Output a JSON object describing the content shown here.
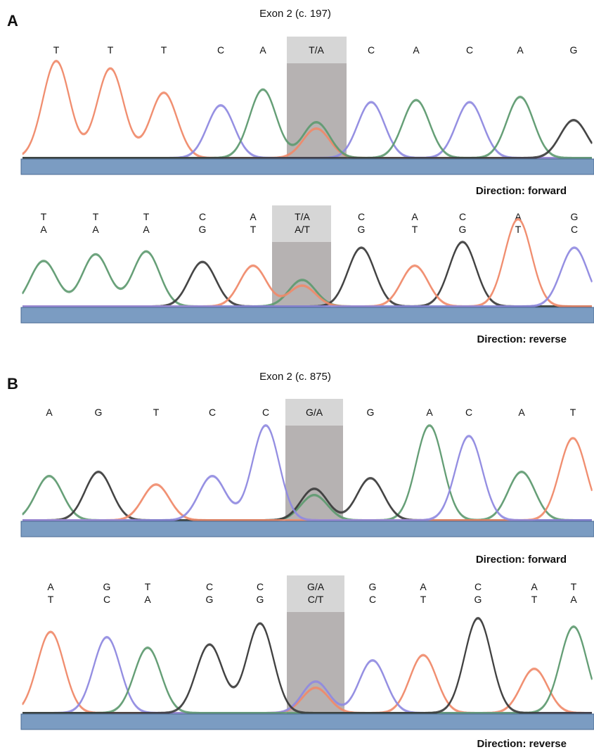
{
  "colors": {
    "T": "#f08a6a",
    "C": "#8f8ae0",
    "A": "#5e9a70",
    "G": "#3a3a3a"
  },
  "panels": [
    {
      "letter": "A",
      "title": "Exon 2 (c. 197)",
      "tracks": [
        {
          "direction_label": "Direction: forward",
          "highlight_top": "T/A",
          "highlight_bottom": "",
          "columns": [
            {
              "top": "T",
              "bottom": ""
            },
            {
              "top": "T",
              "bottom": ""
            },
            {
              "top": "T",
              "bottom": ""
            },
            {
              "top": "C",
              "bottom": ""
            },
            {
              "top": "A",
              "bottom": ""
            },
            {
              "top": "T/A",
              "bottom": ""
            },
            {
              "top": "C",
              "bottom": ""
            },
            {
              "top": "A",
              "bottom": ""
            },
            {
              "top": "C",
              "bottom": ""
            },
            {
              "top": "A",
              "bottom": ""
            },
            {
              "top": "G",
              "bottom": ""
            }
          ],
          "peaks": [
            {
              "base": "T",
              "level": 0.92
            },
            {
              "base": "T",
              "level": 0.85
            },
            {
              "base": "T",
              "level": 0.62
            },
            {
              "base": "C",
              "level": 0.5
            },
            {
              "base": "A",
              "level": 0.65
            },
            {
              "base": "A",
              "level": 0.34,
              "second": "T",
              "second_level": 0.28
            },
            {
              "base": "C",
              "level": 0.53
            },
            {
              "base": "A",
              "level": 0.55
            },
            {
              "base": "C",
              "level": 0.53
            },
            {
              "base": "A",
              "level": 0.58
            },
            {
              "base": "G",
              "level": 0.36
            }
          ]
        },
        {
          "direction_label": "Direction: reverse",
          "highlight_top": "T/A",
          "highlight_bottom": "A/T",
          "columns": [
            {
              "top": "T",
              "bottom": "A"
            },
            {
              "top": "T",
              "bottom": "A"
            },
            {
              "top": "T",
              "bottom": "A"
            },
            {
              "top": "C",
              "bottom": "G"
            },
            {
              "top": "A",
              "bottom": "T"
            },
            {
              "top": "T/A",
              "bottom": "A/T"
            },
            {
              "top": "C",
              "bottom": "G"
            },
            {
              "top": "A",
              "bottom": "T"
            },
            {
              "top": "C",
              "bottom": "G"
            },
            {
              "top": "A",
              "bottom": "T"
            },
            {
              "top": "G",
              "bottom": "C"
            }
          ],
          "peaks": [
            {
              "base": "A",
              "level": 0.48
            },
            {
              "base": "A",
              "level": 0.55
            },
            {
              "base": "A",
              "level": 0.58
            },
            {
              "base": "G",
              "level": 0.47
            },
            {
              "base": "T",
              "level": 0.43
            },
            {
              "base": "A",
              "level": 0.28,
              "second": "T",
              "second_level": 0.22
            },
            {
              "base": "G",
              "level": 0.62
            },
            {
              "base": "T",
              "level": 0.43
            },
            {
              "base": "G",
              "level": 0.68
            },
            {
              "base": "T",
              "level": 0.92
            },
            {
              "base": "C",
              "level": 0.62
            }
          ]
        }
      ]
    },
    {
      "letter": "B",
      "title": "Exon 2 (c. 875)",
      "tracks": [
        {
          "direction_label": "Direction: forward",
          "highlight_top": "G/A",
          "highlight_bottom": "",
          "columns": [
            {
              "top": "A",
              "bottom": ""
            },
            {
              "top": "G",
              "bottom": ""
            },
            {
              "top": "T",
              "bottom": ""
            },
            {
              "top": "C",
              "bottom": ""
            },
            {
              "top": "C",
              "bottom": ""
            },
            {
              "top": "G/A",
              "bottom": ""
            },
            {
              "top": "G",
              "bottom": ""
            },
            {
              "top": "A",
              "bottom": ""
            },
            {
              "top": "C",
              "bottom": ""
            },
            {
              "top": "A",
              "bottom": ""
            },
            {
              "top": "T",
              "bottom": ""
            }
          ],
          "peaks": [
            {
              "base": "A",
              "level": 0.42
            },
            {
              "base": "G",
              "level": 0.46
            },
            {
              "base": "T",
              "level": 0.34
            },
            {
              "base": "C",
              "level": 0.42
            },
            {
              "base": "C",
              "level": 0.9
            },
            {
              "base": "G",
              "level": 0.3,
              "second": "A",
              "second_level": 0.24
            },
            {
              "base": "G",
              "level": 0.4
            },
            {
              "base": "A",
              "level": 0.9
            },
            {
              "base": "C",
              "level": 0.8
            },
            {
              "base": "A",
              "level": 0.46
            },
            {
              "base": "T",
              "level": 0.78
            }
          ]
        },
        {
          "direction_label": "Direction: reverse",
          "highlight_top": "G/A",
          "highlight_bottom": "C/T",
          "columns": [
            {
              "top": "A",
              "bottom": "T"
            },
            {
              "top": "G",
              "bottom": "C"
            },
            {
              "top": "T",
              "bottom": "A"
            },
            {
              "top": "C",
              "bottom": "G"
            },
            {
              "top": "C",
              "bottom": "G"
            },
            {
              "top": "G/A",
              "bottom": "C/T"
            },
            {
              "top": "G",
              "bottom": "C"
            },
            {
              "top": "A",
              "bottom": "T"
            },
            {
              "top": "C",
              "bottom": "G"
            },
            {
              "top": "A",
              "bottom": "T"
            },
            {
              "top": "T",
              "bottom": "A"
            }
          ],
          "peaks": [
            {
              "base": "T",
              "level": 0.77
            },
            {
              "base": "C",
              "level": 0.72
            },
            {
              "base": "A",
              "level": 0.62
            },
            {
              "base": "G",
              "level": 0.65
            },
            {
              "base": "G",
              "level": 0.85
            },
            {
              "base": "C",
              "level": 0.3,
              "second": "T",
              "second_level": 0.24
            },
            {
              "base": "C",
              "level": 0.5
            },
            {
              "base": "T",
              "level": 0.55
            },
            {
              "base": "G",
              "level": 0.9
            },
            {
              "base": "T",
              "level": 0.42
            },
            {
              "base": "A",
              "level": 0.82
            }
          ]
        }
      ]
    }
  ]
}
